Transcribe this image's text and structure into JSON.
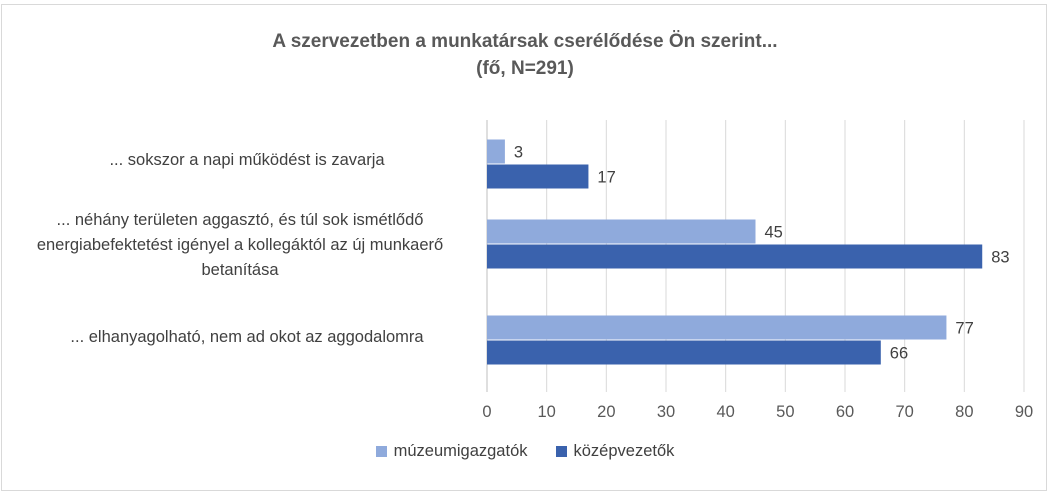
{
  "chart_data": {
    "type": "bar",
    "orientation": "horizontal",
    "title": "A szervezetben a munkatársak cserélődése Ön szerint...",
    "subtitle": "(fő, N=291)",
    "categories": [
      "... sokszor a napi működést is zavarja",
      "... néhány területen aggasztó, és túl sok ismétlődő energiabefektetést igényel a kollegáktól az új munkaerő betanítása",
      "... elhanyagolható, nem ad okot az aggodalomra"
    ],
    "series": [
      {
        "name": "múzeumigazgatók",
        "color": "#8faadc",
        "values": [
          3,
          45,
          77
        ]
      },
      {
        "name": "középvezetők",
        "color": "#3a62ad",
        "values": [
          17,
          83,
          66
        ]
      }
    ],
    "xlim": [
      0,
      90
    ],
    "xticks": [
      0,
      10,
      20,
      30,
      40,
      50,
      60,
      70,
      80,
      90
    ],
    "grid": true,
    "legend_position": "bottom"
  }
}
